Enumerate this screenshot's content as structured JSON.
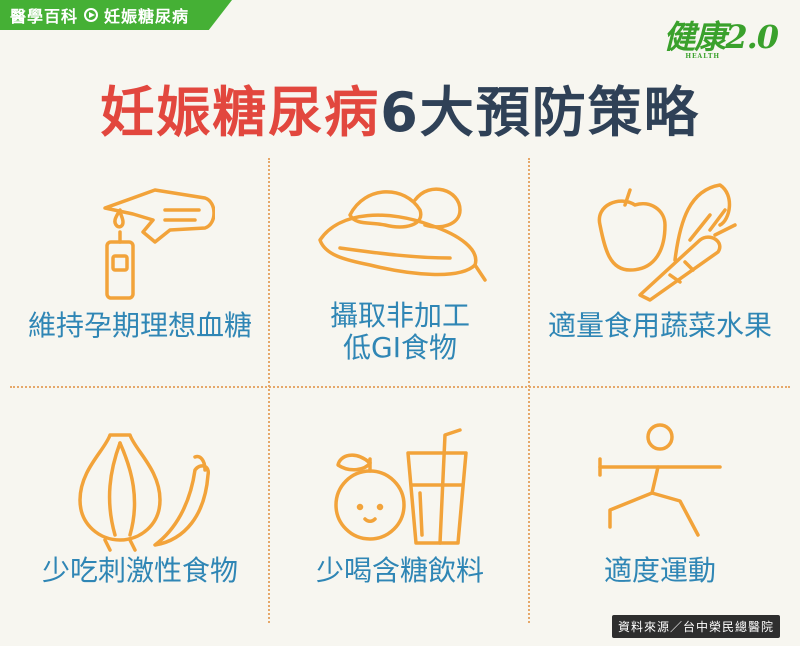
{
  "header": {
    "category": "醫學百科",
    "topic": "妊娠糖尿病",
    "logo_text": "健康2.0",
    "logo_sub": "HEALTH"
  },
  "title": {
    "red_part": "妊娠糖尿病",
    "dark_part": "6大預防策略"
  },
  "strategies": [
    {
      "icon": "blood-glucose-meter-icon",
      "label": "維持孕期理想血糖"
    },
    {
      "icon": "sweet-potato-icon",
      "label_line1": "攝取非加工",
      "label_line2": "低GI食物"
    },
    {
      "icon": "vegetables-icon",
      "label": "適量食用蔬菜水果"
    },
    {
      "icon": "onion-chili-icon",
      "label": "少吃刺激性食物"
    },
    {
      "icon": "fruit-drink-icon",
      "label": "少喝含糖飲料"
    },
    {
      "icon": "exercise-icon",
      "label": "適度運動"
    }
  ],
  "colors": {
    "brand_green": "#45b035",
    "title_red": "#e2473e",
    "title_dark": "#2f4157",
    "label_blue": "#2f86b5",
    "icon_orange": "#f2a33a"
  },
  "source": "資料來源／台中榮民總醫院"
}
